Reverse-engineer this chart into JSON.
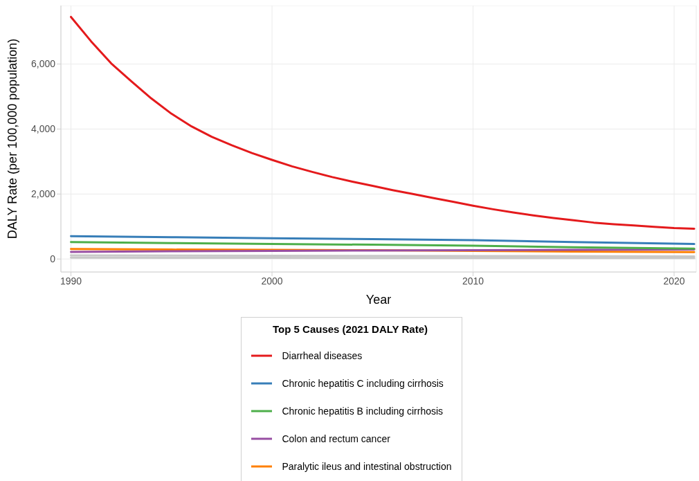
{
  "chart_data": {
    "type": "line",
    "xlabel": "Year",
    "ylabel": "DALY Rate (per 100,000 population)",
    "legend_title": "Top 5 Causes (2021 DALY Rate)",
    "legend": "bottom",
    "grid": true,
    "marker": "none",
    "line_style": "solid",
    "xlim": [
      1989.5,
      2021.1
    ],
    "xticks": [
      1990,
      2000,
      2010,
      2020
    ],
    "ylim": [
      -400,
      7800
    ],
    "yticks": [
      {
        "value": 0,
        "label": "0"
      },
      {
        "value": 2000,
        "label": "2,000"
      },
      {
        "value": 4000,
        "label": "4,000"
      },
      {
        "value": 6000,
        "label": "6,000"
      }
    ],
    "series": [
      {
        "color": "#c8c8c8",
        "x": [
          1990,
          2000,
          2010,
          2021
        ],
        "values": [
          110,
          100,
          90,
          80
        ]
      },
      {
        "color": "#c8c8c8",
        "x": [
          1990,
          2000,
          2010,
          2021
        ],
        "values": [
          40,
          35,
          30,
          30
        ]
      },
      {
        "name": "Paralytic ileus and intestinal obstruction",
        "color": "#ff7f00",
        "x": [
          1990,
          1995,
          2000,
          2005,
          2010,
          2015,
          2021
        ],
        "values": [
          310,
          290,
          280,
          270,
          250,
          230,
          210
        ]
      },
      {
        "name": "Colon and rectum cancer",
        "color": "#984ea3",
        "x": [
          1990,
          1995,
          2000,
          2005,
          2010,
          2015,
          2021
        ],
        "values": [
          220,
          240,
          250,
          260,
          270,
          280,
          290
        ]
      },
      {
        "name": "Chronic hepatitis B including cirrhosis",
        "color": "#4daf4a",
        "x": [
          1990,
          1995,
          2000,
          2005,
          2010,
          2015,
          2021
        ],
        "values": [
          520,
          490,
          460,
          440,
          410,
          360,
          320
        ]
      },
      {
        "name": "Chronic hepatitis C including cirrhosis",
        "color": "#377eb8",
        "x": [
          1990,
          1995,
          2000,
          2005,
          2010,
          2015,
          2021
        ],
        "values": [
          700,
          670,
          640,
          610,
          580,
          520,
          460
        ]
      },
      {
        "name": "Diarrheal diseases",
        "color": "#e41a1c",
        "x": [
          1990,
          1991,
          1992,
          1993,
          1994,
          1995,
          1996,
          1997,
          1998,
          1999,
          2000,
          2001,
          2002,
          2003,
          2004,
          2005,
          2006,
          2007,
          2008,
          2009,
          2010,
          2011,
          2012,
          2013,
          2014,
          2015,
          2016,
          2017,
          2018,
          2019,
          2020,
          2021
        ],
        "values": [
          7450,
          6700,
          6020,
          5470,
          4940,
          4470,
          4080,
          3760,
          3500,
          3260,
          3050,
          2850,
          2680,
          2520,
          2380,
          2250,
          2120,
          2000,
          1880,
          1760,
          1640,
          1530,
          1430,
          1340,
          1260,
          1190,
          1120,
          1070,
          1030,
          990,
          950,
          930
        ]
      }
    ]
  }
}
